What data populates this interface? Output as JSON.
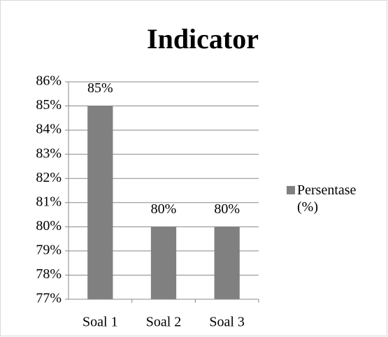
{
  "chart_data": {
    "type": "bar",
    "title": "Indicator",
    "categories": [
      "Soal 1",
      "Soal 2",
      "Soal 3"
    ],
    "series": [
      {
        "name": "Persentase (%)",
        "color": "#808080",
        "values": [
          85,
          80,
          80
        ],
        "value_labels": [
          "85%",
          "80%",
          "80%"
        ]
      }
    ],
    "ylim": [
      77,
      86
    ],
    "yticks": [
      {
        "value": 77,
        "label": "77%"
      },
      {
        "value": 78,
        "label": "78%"
      },
      {
        "value": 79,
        "label": "79%"
      },
      {
        "value": 80,
        "label": "80%"
      },
      {
        "value": 81,
        "label": "81%"
      },
      {
        "value": 82,
        "label": "82%"
      },
      {
        "value": 83,
        "label": "83%"
      },
      {
        "value": 84,
        "label": "84%"
      },
      {
        "value": 85,
        "label": "85%"
      },
      {
        "value": 86,
        "label": "86%"
      }
    ],
    "grid": true,
    "legend": "right"
  }
}
